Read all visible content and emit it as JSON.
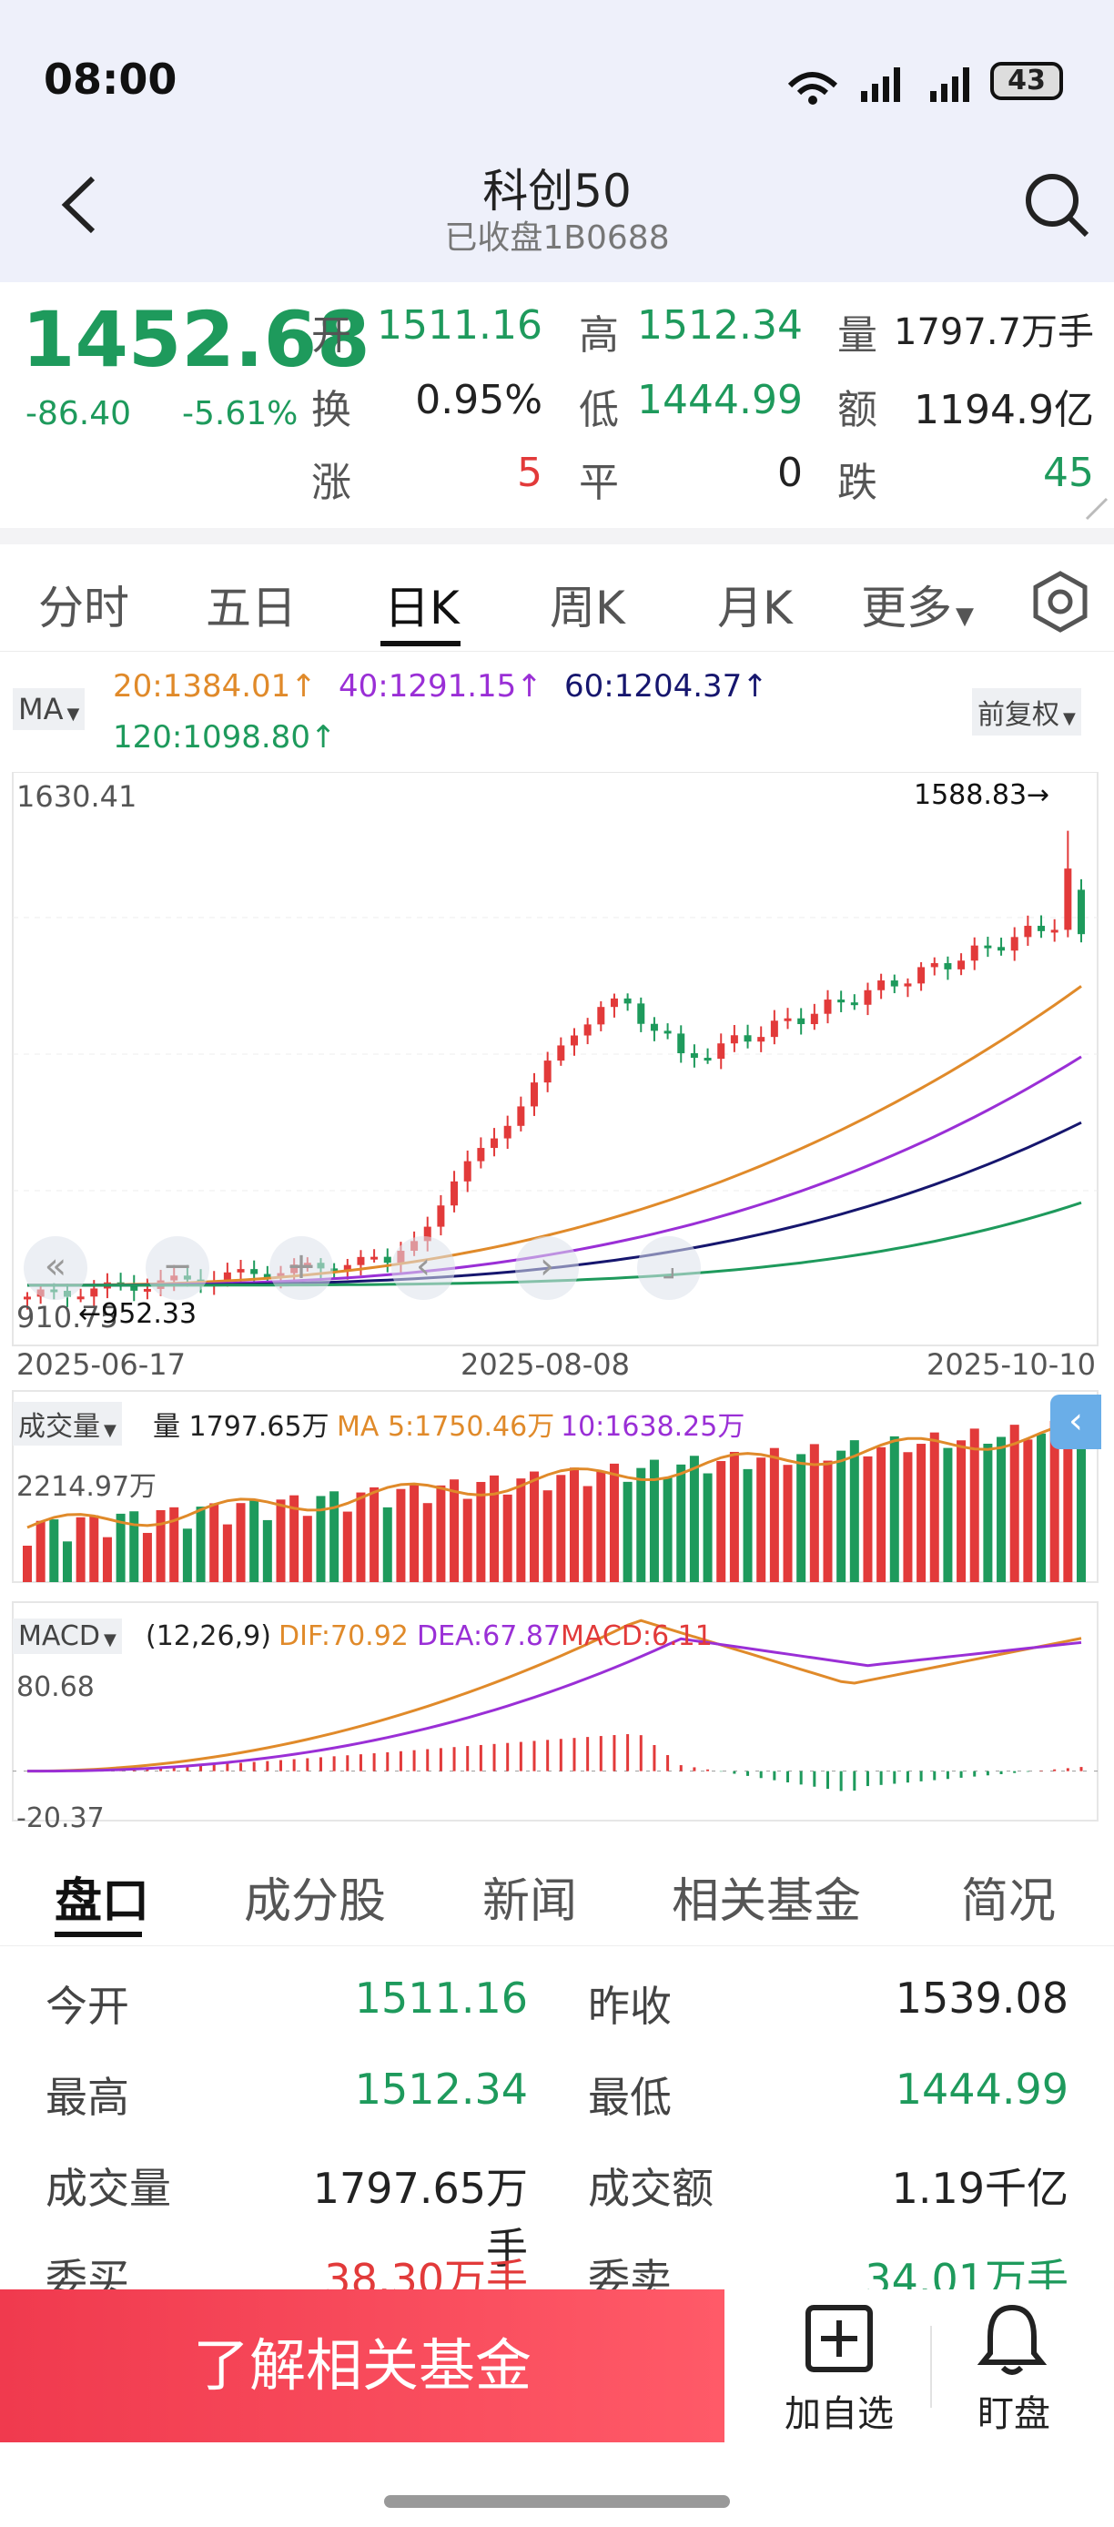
{
  "status": {
    "time": "08:00",
    "battery": "43"
  },
  "header": {
    "title": "科创50",
    "subtitle": "已收盘1B0688"
  },
  "quote": {
    "price": "1452.68",
    "change": "-86.40",
    "change_pct": "-5.61%",
    "open_label": "开",
    "open": "1511.16",
    "high_label": "高",
    "high": "1512.34",
    "vol_label": "量",
    "vol": "1797.7万手",
    "turnover_label": "换",
    "turnover": "0.95%",
    "low_label": "低",
    "low": "1444.99",
    "amount_label": "额",
    "amount": "1194.9亿",
    "up_label": "涨",
    "up": "5",
    "flat_label": "平",
    "flat": "0",
    "down_label": "跌",
    "down": "45"
  },
  "tabs": [
    "分时",
    "五日",
    "日K",
    "周K",
    "月K",
    "更多"
  ],
  "chart": {
    "ma_button": "MA",
    "ma20": "20:1384.01↑",
    "ma40": "40:1291.15↑",
    "ma60": "60:1204.37↑",
    "ma120": "120:1098.80↑",
    "adjust": "前复权",
    "y_top": "1630.41",
    "y_bottom": "910.75",
    "max_label": "1588.83→",
    "min_label": "←952.33",
    "dates": [
      "2025-06-17",
      "2025-08-08",
      "2025-10-10"
    ],
    "vol_button": "成交量",
    "vol_label": "量 1797.65万",
    "vol_ma5": "MA 5:1750.46万",
    "vol_ma10": "10:1638.25万",
    "vol_top": "2214.97万",
    "macd_button": "MACD",
    "macd_params": "(12,26,9)",
    "dif": "DIF:70.92",
    "dea": "DEA:67.87",
    "macd": "MACD:6.11",
    "macd_top": "80.68",
    "macd_bottom": "-20.37"
  },
  "chart_data": {
    "type": "candlestick",
    "x_range": [
      "2025-06-17",
      "2025-10-10"
    ],
    "price_range": [
      910.75,
      1630.41
    ],
    "max_price": 1588.83,
    "min_price": 952.33,
    "ma": {
      "MA20": 1384.01,
      "MA40": 1291.15,
      "MA60": 1204.37,
      "MA120": 1098.8
    },
    "volume": {
      "latest": "1797.65万",
      "ma5": "1750.46万",
      "ma10": "1638.25万",
      "max": "2214.97万"
    },
    "macd": {
      "dif": 70.92,
      "dea": 67.87,
      "macd": 6.11,
      "range": [
        -20.37,
        80.68
      ]
    }
  },
  "bottom_tabs": [
    "盘口",
    "成分股",
    "新闻",
    "相关基金",
    "简况"
  ],
  "panel": [
    {
      "l1": "今开",
      "v1": "1511.16",
      "c1": "g",
      "l2": "昨收",
      "v2": "1539.08",
      "c2": "n"
    },
    {
      "l1": "最高",
      "v1": "1512.34",
      "c1": "g",
      "l2": "最低",
      "v2": "1444.99",
      "c2": "g"
    },
    {
      "l1": "成交量",
      "v1": "1797.65万手",
      "c1": "n",
      "l2": "成交额",
      "v2": "1.19千亿",
      "c2": "n"
    },
    {
      "l1": "委买",
      "v1": "38.30万手",
      "c1": "r",
      "l2": "委卖",
      "v2": "34.01万手",
      "c2": "g"
    }
  ],
  "footer": {
    "cta": "了解相关基金",
    "add": "加自选",
    "watch": "盯盘"
  },
  "colors": {
    "up": "#e23a3a",
    "down": "#1e9a5c",
    "ma20": "#e08a2a",
    "ma40": "#9a2fd6",
    "ma60": "#16166e",
    "ma120": "#1e9a5c"
  }
}
